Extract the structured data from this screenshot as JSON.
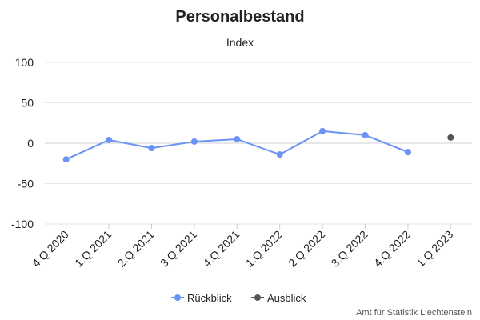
{
  "chart_data": {
    "type": "line",
    "title": "Personalbestand",
    "subtitle": "Index",
    "categories": [
      "4.Q 2020",
      "1.Q 2021",
      "2.Q 2021",
      "3.Q 2021",
      "4.Q 2021",
      "1.Q 2022",
      "2.Q 2022",
      "3.Q 2022",
      "4.Q 2022",
      "1.Q 2023"
    ],
    "series": [
      {
        "name": "Rückblick",
        "color": "#6a93f5",
        "values": [
          -20,
          4,
          -6,
          2,
          5,
          -14,
          15,
          10,
          -11,
          null
        ]
      },
      {
        "name": "Ausblick",
        "color": "#555555",
        "values": [
          null,
          null,
          null,
          null,
          null,
          null,
          null,
          null,
          null,
          7
        ]
      }
    ],
    "ylim": [
      -100,
      100
    ],
    "yticks": [
      -100,
      -50,
      0,
      50,
      100
    ],
    "grid": true,
    "legend_position": "bottom-center",
    "credit": "Amt für Statistik Liechtenstein"
  }
}
